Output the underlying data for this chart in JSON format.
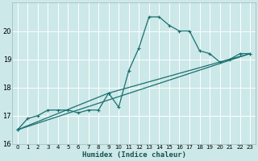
{
  "xlabel": "Humidex (Indice chaleur)",
  "ylabel": "",
  "xlim": [
    -0.5,
    23.5
  ],
  "ylim": [
    16,
    21.0
  ],
  "yticks": [
    16,
    17,
    18,
    19,
    20
  ],
  "xticks": [
    0,
    1,
    2,
    3,
    4,
    5,
    6,
    7,
    8,
    9,
    10,
    11,
    12,
    13,
    14,
    15,
    16,
    17,
    18,
    19,
    20,
    21,
    22,
    23
  ],
  "background_color": "#cce8e8",
  "grid_color": "#b0d0d0",
  "line_color": "#1a7070",
  "series": [
    {
      "x": [
        0,
        1,
        2,
        3,
        4,
        5,
        6,
        7,
        8,
        9,
        10,
        11,
        12,
        13,
        14,
        15,
        16,
        17,
        18,
        19,
        20,
        21,
        22,
        23
      ],
      "y": [
        16.5,
        16.9,
        17.0,
        17.2,
        17.2,
        17.2,
        17.1,
        17.2,
        17.2,
        17.8,
        17.3,
        18.6,
        19.4,
        20.5,
        20.5,
        20.2,
        20.0,
        20.0,
        19.3,
        19.2,
        18.9,
        19.0,
        19.2,
        19.2
      ]
    },
    {
      "x": [
        0,
        23
      ],
      "y": [
        16.5,
        19.2
      ]
    },
    {
      "x": [
        0,
        9,
        23
      ],
      "y": [
        16.5,
        17.8,
        19.2
      ]
    }
  ]
}
